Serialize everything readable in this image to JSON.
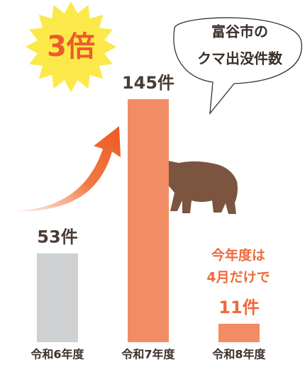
{
  "chart_data": {
    "type": "bar",
    "title": [
      "富谷市の",
      "クマ出没件数"
    ],
    "badge": "3倍",
    "annotation": [
      "今年度は",
      "4月だけで"
    ],
    "categories": [
      "令和6年度",
      "令和7年度",
      "令和8年度"
    ],
    "values": [
      53,
      145,
      11
    ],
    "value_labels": [
      "53件",
      "145件",
      "11件"
    ],
    "colors": [
      "#cfd0d2",
      "#f28c64",
      "#f28c64"
    ],
    "label_colors": [
      "#4a3c35",
      "#4a3c35",
      "#ef6a3a"
    ]
  }
}
